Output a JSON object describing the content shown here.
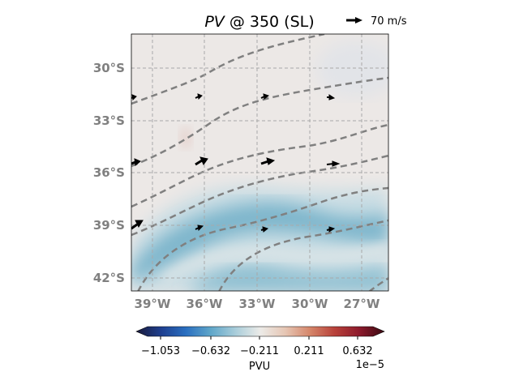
{
  "title": {
    "variable": "PV",
    "rest": " @ 350 (SL)"
  },
  "wind_key": {
    "label": "70 m/s"
  },
  "map": {
    "lat_labels": [
      "30°S",
      "33°S",
      "36°S",
      "39°S",
      "42°S"
    ],
    "lon_labels": [
      "39°W",
      "36°W",
      "33°W",
      "30°W",
      "27°W"
    ],
    "background_color": "#ece8e6",
    "contour_color": "#808080",
    "arrow_color": "#000000"
  },
  "colorbar": {
    "label": "PVU",
    "scale": "1e−5",
    "ticks": [
      "−1.053",
      "−0.632",
      "−0.211",
      "0.211",
      "0.632"
    ],
    "colors": [
      "#1a1a3a",
      "#1f3f8f",
      "#2a6fc0",
      "#5fa6c9",
      "#a9cdda",
      "#ecebe8",
      "#e6c6b4",
      "#d5866a",
      "#b8413a",
      "#8c1a2c",
      "#3a0a12"
    ]
  }
}
